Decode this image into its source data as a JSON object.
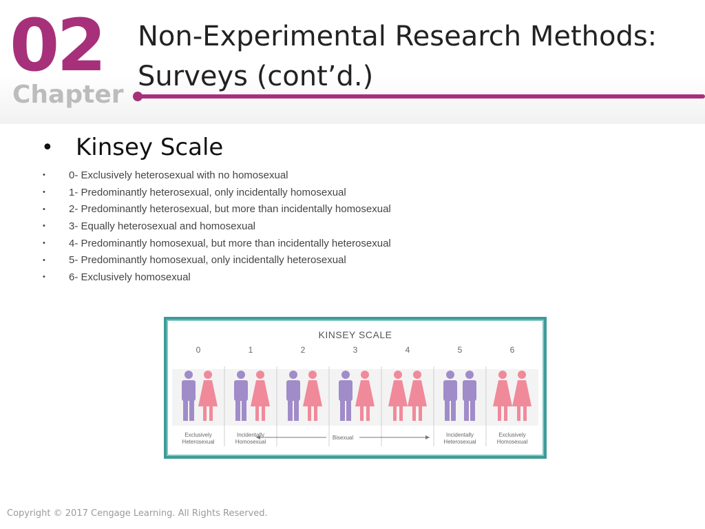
{
  "header": {
    "chapter_number": "02",
    "chapter_word": "Chapter",
    "title_line1": "Non-Experimental Research Methods:",
    "title_line2": "Surveys (cont’d.)"
  },
  "content": {
    "main_bullet": "Kinsey Scale",
    "items": [
      "0- Exclusively heterosexual with no homosexual",
      "1- Predominantly heterosexual, only incidentally homosexual",
      "2- Predominantly heterosexual, but more than incidentally homosexual",
      "3- Equally heterosexual and homosexual",
      "4- Predominantly homosexual, but more than incidentally heterosexual",
      "5- Predominantly homosexual, only incidentally heterosexual",
      "6- Exclusively homosexual"
    ]
  },
  "figure": {
    "title": "KINSEY SCALE",
    "scale_values": [
      "0",
      "1",
      "2",
      "3",
      "4",
      "5",
      "6"
    ],
    "pairs": [
      [
        "male",
        "female"
      ],
      [
        "male",
        "female"
      ],
      [
        "male",
        "female"
      ],
      [
        "male",
        "female"
      ],
      [
        "female",
        "female"
      ],
      [
        "male",
        "male"
      ],
      [
        "female",
        "female"
      ]
    ],
    "labels": {
      "exclusively_heterosexual": [
        "Exclusively",
        "Heterosexual"
      ],
      "incidentally_homosexual": [
        "Incidentally",
        "Homosexual"
      ],
      "bisexual": "Bisexual",
      "incidentally_heterosexual": [
        "Incidentally",
        "Heterosexual"
      ],
      "exclusively_homosexual": [
        "Exclusively",
        "Homosexual"
      ]
    },
    "colors": {
      "male": "#a08cc8",
      "female": "#f08a9a",
      "frame": "#3d9b97"
    }
  },
  "footer": {
    "copyright": "Copyright © 2017 Cengage Learning. All Rights Reserved."
  }
}
